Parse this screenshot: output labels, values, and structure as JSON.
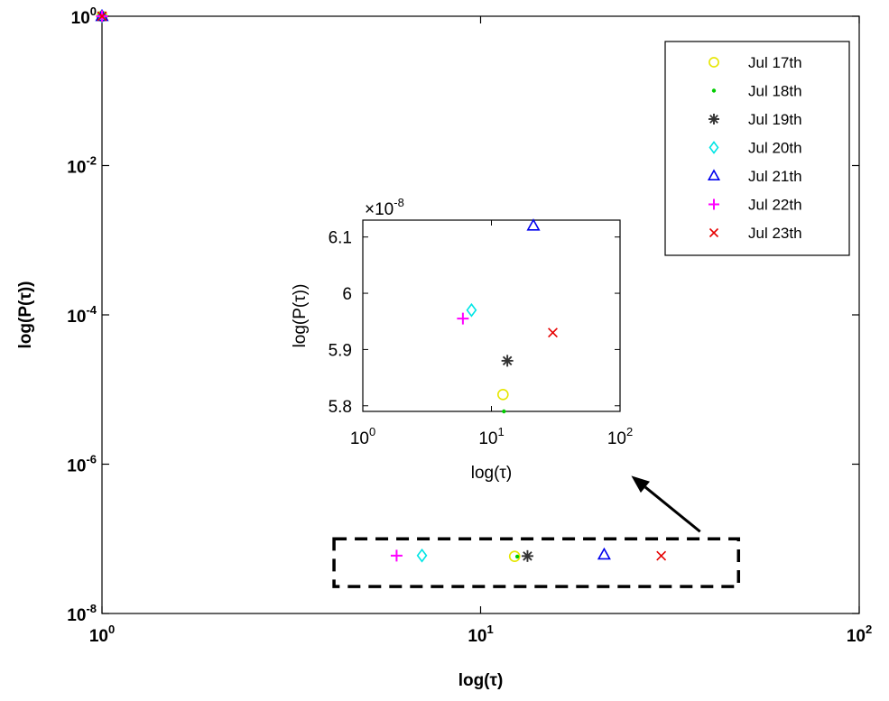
{
  "chart_data": [
    {
      "id": "main",
      "type": "scatter",
      "title": "",
      "xlabel": "log(τ)",
      "ylabel": "log(P(τ))",
      "xscale": "log",
      "yscale": "log",
      "xlim": [
        1,
        100
      ],
      "ylim": [
        1e-08,
        1
      ],
      "x_ticks": [
        {
          "value": 1,
          "base": "10",
          "exp": "0"
        },
        {
          "value": 10,
          "base": "10",
          "exp": "1"
        },
        {
          "value": 100,
          "base": "10",
          "exp": "2"
        }
      ],
      "y_ticks": [
        {
          "value": 1,
          "base": "10",
          "exp": "0"
        },
        {
          "value": 0.01,
          "base": "10",
          "exp": "-2"
        },
        {
          "value": 0.0001,
          "base": "10",
          "exp": "-4"
        },
        {
          "value": 1e-06,
          "base": "10",
          "exp": "-6"
        },
        {
          "value": 1e-08,
          "base": "10",
          "exp": "-8"
        }
      ],
      "grid": false,
      "legend_position": "top-right",
      "series": [
        {
          "name": "Jul 17th",
          "marker": "circle",
          "color": "#e6e600",
          "points": [
            [
              1,
              1
            ],
            [
              12.3,
              5.82e-08
            ]
          ]
        },
        {
          "name": "Jul 18th",
          "marker": "dot",
          "color": "#00cc00",
          "points": [
            [
              1,
              1
            ],
            [
              12.5,
              5.79e-08
            ]
          ]
        },
        {
          "name": "Jul 19th",
          "marker": "asterisk",
          "color": "#333333",
          "points": [
            [
              1,
              1
            ],
            [
              13.3,
              5.88e-08
            ]
          ]
        },
        {
          "name": "Jul 20th",
          "marker": "diamond",
          "color": "#00e5e5",
          "points": [
            [
              1,
              1
            ],
            [
              7.0,
              5.97e-08
            ]
          ]
        },
        {
          "name": "Jul 21th",
          "marker": "triangle",
          "color": "#0000ee",
          "points": [
            [
              1,
              1
            ],
            [
              21.2,
              6.12e-08
            ]
          ]
        },
        {
          "name": "Jul 22th",
          "marker": "plus",
          "color": "#ff00ff",
          "points": [
            [
              1,
              1
            ],
            [
              6.0,
              5.955e-08
            ]
          ]
        },
        {
          "name": "Jul 23th",
          "marker": "x",
          "color": "#e60000",
          "points": [
            [
              1,
              1
            ],
            [
              30.0,
              5.93e-08
            ]
          ]
        }
      ],
      "annotations": [
        {
          "type": "dashed-box",
          "x_range": [
            4.1,
            48
          ],
          "y_range": [
            2.3e-08,
            1e-07
          ]
        },
        {
          "type": "arrow",
          "from": "dashed-box",
          "to": "inset"
        }
      ]
    },
    {
      "id": "inset",
      "type": "scatter",
      "title": "",
      "xlabel": "log(τ)",
      "ylabel": "log(P(τ))",
      "xscale": "log",
      "yscale": "linear",
      "xlim": [
        1,
        100
      ],
      "ylim": [
        5.79,
        6.13
      ],
      "y_multiplier": {
        "symbol": "×",
        "base": "10",
        "exp": "-8"
      },
      "x_ticks": [
        {
          "value": 1,
          "base": "10",
          "exp": "0"
        },
        {
          "value": 10,
          "base": "10",
          "exp": "1"
        },
        {
          "value": 100,
          "base": "10",
          "exp": "2"
        }
      ],
      "y_ticks": [
        {
          "value": 5.8,
          "label": "5.8"
        },
        {
          "value": 5.9,
          "label": "5.9"
        },
        {
          "value": 6.0,
          "label": "6"
        },
        {
          "value": 6.1,
          "label": "6.1"
        }
      ],
      "grid": false,
      "series": [
        {
          "name": "Jul 17th",
          "marker": "circle",
          "color": "#e6e600",
          "points": [
            [
              12.3,
              5.82
            ]
          ]
        },
        {
          "name": "Jul 18th",
          "marker": "dot",
          "color": "#00cc00",
          "points": [
            [
              12.5,
              5.79
            ]
          ]
        },
        {
          "name": "Jul 19th",
          "marker": "asterisk",
          "color": "#333333",
          "points": [
            [
              13.3,
              5.88
            ]
          ]
        },
        {
          "name": "Jul 20th",
          "marker": "diamond",
          "color": "#00e5e5",
          "points": [
            [
              7.0,
              5.97
            ]
          ]
        },
        {
          "name": "Jul 21th",
          "marker": "triangle",
          "color": "#0000ee",
          "points": [
            [
              21.2,
              6.12
            ]
          ]
        },
        {
          "name": "Jul 22th",
          "marker": "plus",
          "color": "#ff00ff",
          "points": [
            [
              6.0,
              5.955
            ]
          ]
        },
        {
          "name": "Jul 23th",
          "marker": "x",
          "color": "#e60000",
          "points": [
            [
              30.0,
              5.93
            ]
          ]
        }
      ]
    }
  ]
}
